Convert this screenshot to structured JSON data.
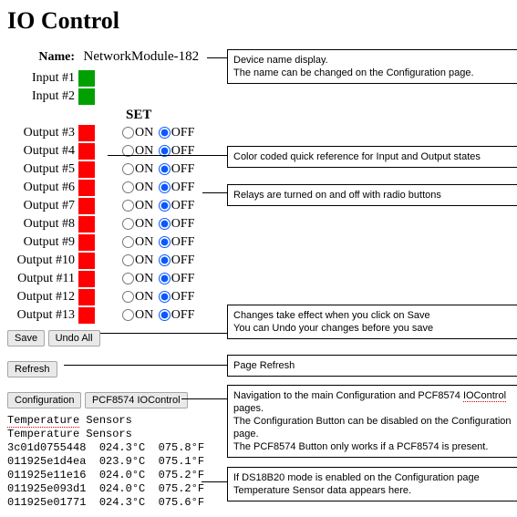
{
  "page_title": "IO Control",
  "name_label": "Name:",
  "device_name": "NetworkModule-182",
  "inputs": [
    {
      "label": "Input #1",
      "color": "#00a000"
    },
    {
      "label": "Input #2",
      "color": "#00a000"
    }
  ],
  "set_header": "SET",
  "outputs": [
    {
      "label": "Output #3",
      "color": "#ff0000",
      "on_label": "ON",
      "off_label": "OFF",
      "checked": "off"
    },
    {
      "label": "Output #4",
      "color": "#ff0000",
      "on_label": "ON",
      "off_label": "OFF",
      "checked": "off"
    },
    {
      "label": "Output #5",
      "color": "#ff0000",
      "on_label": "ON",
      "off_label": "OFF",
      "checked": "off"
    },
    {
      "label": "Output #6",
      "color": "#ff0000",
      "on_label": "ON",
      "off_label": "OFF",
      "checked": "off"
    },
    {
      "label": "Output #7",
      "color": "#ff0000",
      "on_label": "ON",
      "off_label": "OFF",
      "checked": "off"
    },
    {
      "label": "Output #8",
      "color": "#ff0000",
      "on_label": "ON",
      "off_label": "OFF",
      "checked": "off"
    },
    {
      "label": "Output #9",
      "color": "#ff0000",
      "on_label": "ON",
      "off_label": "OFF",
      "checked": "off"
    },
    {
      "label": "Output #10",
      "color": "#ff0000",
      "on_label": "ON",
      "off_label": "OFF",
      "checked": "off"
    },
    {
      "label": "Output #11",
      "color": "#ff0000",
      "on_label": "ON",
      "off_label": "OFF",
      "checked": "off"
    },
    {
      "label": "Output #12",
      "color": "#ff0000",
      "on_label": "ON",
      "off_label": "OFF",
      "checked": "off"
    },
    {
      "label": "Output #13",
      "color": "#ff0000",
      "on_label": "ON",
      "off_label": "OFF",
      "checked": "off"
    }
  ],
  "buttons": {
    "save": "Save",
    "undo": "Undo All",
    "refresh": "Refresh",
    "config": "Configuration",
    "pcf": "PCF8574 IOControl"
  },
  "temp_hdr1_a": "Temperature",
  "temp_hdr1_b": " Sensors",
  "temp_hdr2": "Temperature Sensors",
  "sensors": [
    {
      "id": "3c01d0755448",
      "c": "024.3°C",
      "f": "075.8°F"
    },
    {
      "id": "011925e1d4ea",
      "c": "023.9°C",
      "f": "075.1°F"
    },
    {
      "id": "011925e11e16",
      "c": "024.0°C",
      "f": "075.2°F"
    },
    {
      "id": "011925e093d1",
      "c": "024.0°C",
      "f": "075.2°F"
    },
    {
      "id": "011925e01771",
      "c": "024.3°C",
      "f": "075.6°F"
    }
  ],
  "callouts": {
    "c1": "Device name display.\nThe name can be changed on the Configuration page.",
    "c2": "Color coded quick reference for Input and Output states",
    "c3": "Relays are turned on and off with radio buttons",
    "c4": "Changes take effect when you click on Save\nYou can Undo your changes before you save",
    "c5": "Page Refresh",
    "c6a": "Navigation to the main Configuration and PCF8574 ",
    "c6b": "IOControl",
    "c6c": " pages.\nThe Configuration Button can be disabled on the Configuration page.\nThe PCF8574 Button only works if a PCF8574 is present.",
    "c7": "If DS18B20 mode is enabled on the Configuration page Temperature Sensor data appears here."
  }
}
